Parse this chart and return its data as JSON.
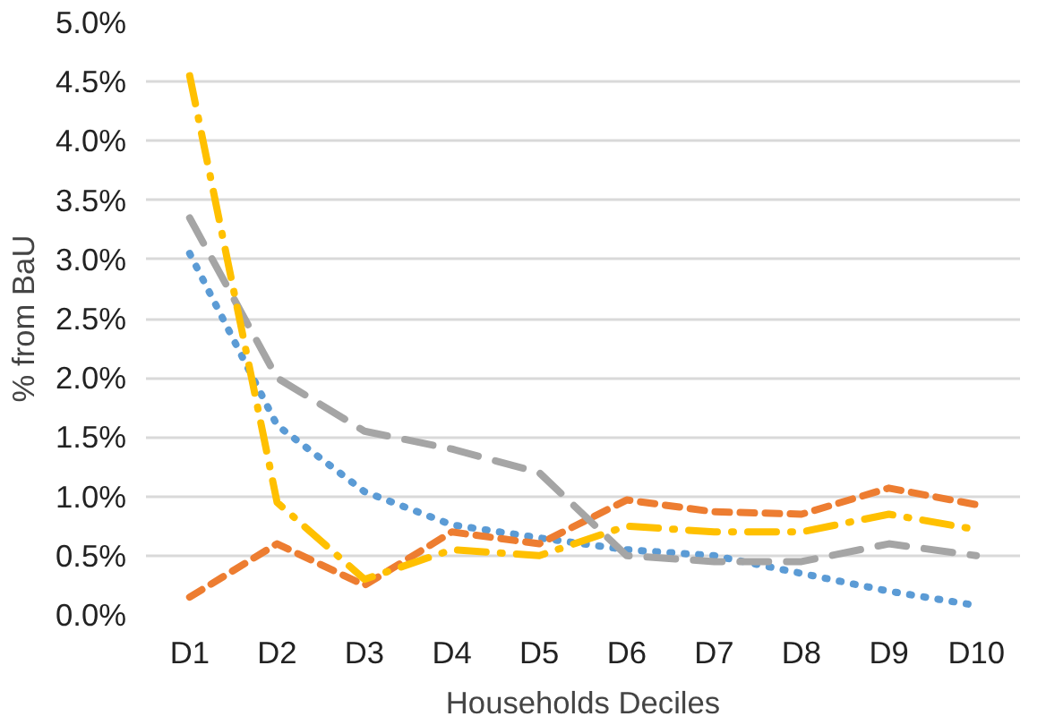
{
  "chart_data": {
    "type": "line",
    "xlabel": "Households Deciles",
    "ylabel": "% from BaU",
    "categories": [
      "D1",
      "D2",
      "D3",
      "D4",
      "D5",
      "D6",
      "D7",
      "D8",
      "D9",
      "D10"
    ],
    "ylim": [
      0,
      0.05
    ],
    "yticks": [
      {
        "value": 0,
        "label": "0.0%"
      },
      {
        "value": 0.005,
        "label": "0.5%"
      },
      {
        "value": 0.01,
        "label": "1.0%"
      },
      {
        "value": 0.015,
        "label": "1.5%"
      },
      {
        "value": 0.02,
        "label": "2.0%"
      },
      {
        "value": 0.025,
        "label": "2.5%"
      },
      {
        "value": 0.03,
        "label": "3.0%"
      },
      {
        "value": 0.035,
        "label": "3.5%"
      },
      {
        "value": 0.04,
        "label": "4.0%"
      },
      {
        "value": 0.045,
        "label": "4.5%"
      },
      {
        "value": 0.05,
        "label": "5.0%"
      }
    ],
    "grid": "y",
    "marker": "none",
    "series": [
      {
        "color": "#5b9bd5",
        "line_style": "dotted",
        "values": [
          0.0305,
          0.016,
          0.0104,
          0.0076,
          0.0065,
          0.0055,
          0.005,
          0.0035,
          0.002,
          0.0008
        ]
      },
      {
        "color": "#ed7d31",
        "line_style": "dashed",
        "values": [
          0.0015,
          0.006,
          0.0025,
          0.007,
          0.006,
          0.0097,
          0.0087,
          0.0085,
          0.0107,
          0.0093
        ]
      },
      {
        "color": "#a5a5a5",
        "line_style": "longdash",
        "values": [
          0.0335,
          0.02,
          0.0155,
          0.014,
          0.012,
          0.005,
          0.0045,
          0.0045,
          0.006,
          0.005
        ]
      },
      {
        "color": "#ffc000",
        "line_style": "dashdot",
        "values": [
          0.0455,
          0.0095,
          0.003,
          0.0055,
          0.005,
          0.0075,
          0.007,
          0.007,
          0.0085,
          0.0072
        ]
      }
    ]
  }
}
